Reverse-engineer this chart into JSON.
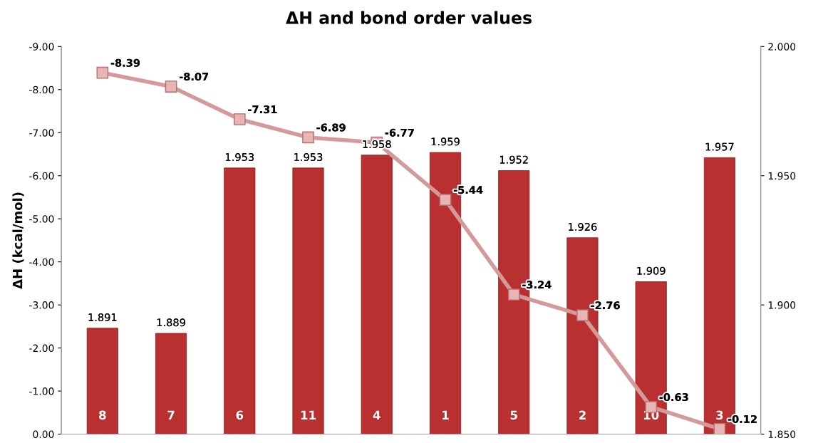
{
  "chart_data": {
    "type": "bar",
    "title": "ΔH and bond order values",
    "ylabel": "ΔH (kcal/mol)",
    "categories": [
      "8",
      "7",
      "6",
      "11",
      "4",
      "1",
      "5",
      "2",
      "10",
      "3"
    ],
    "series": [
      {
        "axis": "y2",
        "color": "#b83030",
        "values": [
          1.891,
          1.889,
          1.953,
          1.953,
          1.958,
          1.959,
          1.952,
          1.926,
          1.909,
          1.957
        ]
      },
      {
        "type": "line",
        "axis": "y",
        "color": "#d49a9a",
        "marker": "square",
        "line_style": "solid",
        "values": [
          -8.39,
          -8.07,
          -7.31,
          -6.89,
          -6.77,
          -5.44,
          -3.24,
          -2.76,
          -0.63,
          -0.12
        ]
      }
    ],
    "ylim": [
      0,
      -9
    ],
    "yticks": [
      {
        "value": 0,
        "label": "0.00"
      },
      {
        "value": -1,
        "label": "-1.00"
      },
      {
        "value": -2,
        "label": "-2.00"
      },
      {
        "value": -3,
        "label": "-3.00"
      },
      {
        "value": -4,
        "label": "-4.00"
      },
      {
        "value": -5,
        "label": "-5.00"
      },
      {
        "value": -6,
        "label": "-6.00"
      },
      {
        "value": -7,
        "label": "-7.00"
      },
      {
        "value": -8,
        "label": "-8.00"
      },
      {
        "value": -9,
        "label": "-9.00"
      }
    ],
    "y2lim": [
      1.85,
      2.0
    ],
    "y2ticks": [
      {
        "value": 1.85,
        "label": "1.850"
      },
      {
        "value": 1.9,
        "label": "1.900"
      },
      {
        "value": 1.95,
        "label": "1.950"
      },
      {
        "value": 2.0,
        "label": "2.000"
      }
    ],
    "data_labels": true,
    "grid": false,
    "legend": false
  }
}
